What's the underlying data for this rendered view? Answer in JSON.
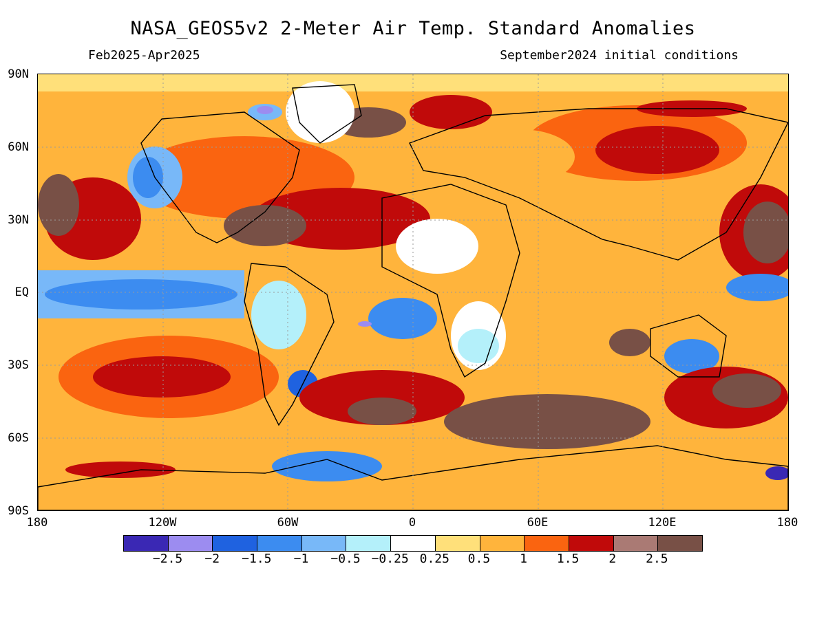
{
  "title": "NASA_GEOS5v2 2-Meter Air Temp. Standard Anomalies",
  "period": "Feb2025-Apr2025",
  "init": "September2024 initial conditions",
  "lat_labels": [
    "90N",
    "60N",
    "30N",
    "EQ",
    "30S",
    "60S",
    "90S"
  ],
  "lon_labels": [
    "180",
    "120W",
    "60W",
    "0",
    "60E",
    "120E",
    "180"
  ],
  "colorbar": {
    "colors": [
      "#3a28b4",
      "#9c8cf0",
      "#1f62e0",
      "#3c8cf0",
      "#78b8f8",
      "#b4f0fa",
      "#ffffff",
      "#ffe07a",
      "#ffb43c",
      "#fa6410",
      "#c00a0a",
      "#aa7a74",
      "#785046"
    ],
    "labels": [
      "−2.5",
      "−2",
      "−1.5",
      "−1",
      "−0.5",
      "−0.25",
      "0.25",
      "0.5",
      "1",
      "1.5",
      "2",
      "2.5"
    ]
  }
}
